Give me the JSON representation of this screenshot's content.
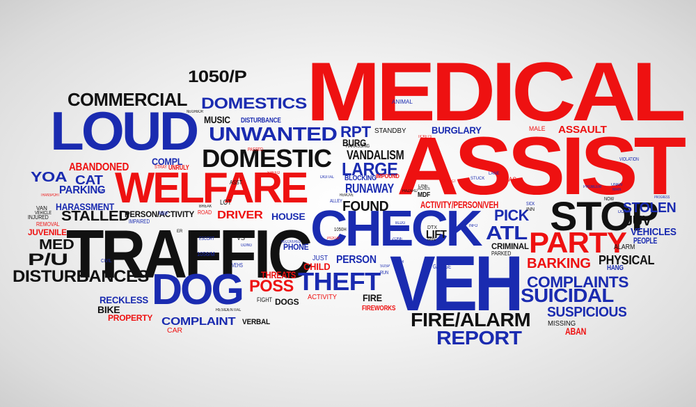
{
  "colors": {
    "red": "#ee1111",
    "blue": "#1a2bb0",
    "black": "#111111",
    "background": "#f0f0f0"
  },
  "words": [
    {
      "text": "MEDICAL",
      "color": "red"
    },
    {
      "text": "ASSIST",
      "color": "red"
    },
    {
      "text": "VEH",
      "color": "blue"
    },
    {
      "text": "TRAFFIC",
      "color": "black"
    },
    {
      "text": "CHECK",
      "color": "blue"
    },
    {
      "text": "WELFARE",
      "color": "red"
    },
    {
      "text": "LOUD",
      "color": "blue"
    },
    {
      "text": "DOG",
      "color": "blue"
    },
    {
      "text": "STOP",
      "color": "black"
    },
    {
      "text": "PARTY",
      "color": "red"
    },
    {
      "text": "DOMESTIC",
      "color": "black"
    },
    {
      "text": "UNWANTED",
      "color": "blue"
    },
    {
      "text": "COMMERCIAL",
      "color": "black"
    },
    {
      "text": "DOMESTICS",
      "color": "blue"
    },
    {
      "text": "1050/P",
      "color": "black"
    },
    {
      "text": "DISTURBANCES",
      "color": "black"
    },
    {
      "text": "FIRE/ALARM",
      "color": "black"
    },
    {
      "text": "REPORT",
      "color": "blue"
    },
    {
      "text": "THEFT",
      "color": "blue"
    },
    {
      "text": "POSS",
      "color": "red"
    },
    {
      "text": "COMPLAINTS",
      "color": "blue"
    },
    {
      "text": "SUICIDAL",
      "color": "blue"
    },
    {
      "text": "SUSPICIOUS",
      "color": "blue"
    },
    {
      "text": "BARKING",
      "color": "red"
    },
    {
      "text": "PHYSICAL",
      "color": "black"
    },
    {
      "text": "VEHICLES",
      "color": "blue"
    },
    {
      "text": "STOLEN",
      "color": "blue"
    },
    {
      "text": "JUV",
      "color": "black"
    },
    {
      "text": "ATL",
      "color": "blue"
    },
    {
      "text": "PICK",
      "color": "blue"
    },
    {
      "text": "FOUND",
      "color": "black"
    },
    {
      "text": "LARGE",
      "color": "blue"
    },
    {
      "text": "RUNAWAY",
      "color": "blue"
    },
    {
      "text": "VANDALISM",
      "color": "black"
    },
    {
      "text": "BURG",
      "color": "black"
    },
    {
      "text": "RPT",
      "color": "blue"
    },
    {
      "text": "STANDBY",
      "color": "black"
    },
    {
      "text": "BURGLARY",
      "color": "blue"
    },
    {
      "text": "ASSAULT",
      "color": "red"
    },
    {
      "text": "MALE",
      "color": "red"
    },
    {
      "text": "ANIMAL",
      "color": "blue"
    },
    {
      "text": "ACTIVITY/PERSON/VEH",
      "color": "red"
    },
    {
      "text": "LIFT",
      "color": "black"
    },
    {
      "text": "CRIMINAL",
      "color": "black"
    },
    {
      "text": "PARKED",
      "color": "black"
    },
    {
      "text": "ALARM",
      "color": "black"
    },
    {
      "text": "PEOPLE",
      "color": "blue"
    },
    {
      "text": "HANG",
      "color": "blue"
    },
    {
      "text": "MISSING",
      "color": "black"
    },
    {
      "text": "ABAN",
      "color": "red"
    },
    {
      "text": "GARAGE",
      "color": "blue"
    },
    {
      "text": "PERSON",
      "color": "blue"
    },
    {
      "text": "CHILD",
      "color": "red"
    },
    {
      "text": "JUST",
      "color": "blue"
    },
    {
      "text": "ACTIVITY",
      "color": "red"
    },
    {
      "text": "FIRE",
      "color": "black"
    },
    {
      "text": "FIREWORKS",
      "color": "red"
    },
    {
      "text": "THREATS",
      "color": "red"
    },
    {
      "text": "DOGS",
      "color": "black"
    },
    {
      "text": "FIGHT",
      "color": "black"
    },
    {
      "text": "PHONE",
      "color": "blue"
    },
    {
      "text": "HOUSE",
      "color": "blue"
    },
    {
      "text": "DRIVER",
      "color": "red"
    },
    {
      "text": "LOT",
      "color": "black"
    },
    {
      "text": "ASST",
      "color": "black"
    },
    {
      "text": "PERSON/ACTIVITY",
      "color": "black"
    },
    {
      "text": "ROAD",
      "color": "red"
    },
    {
      "text": "COMPLAINT",
      "color": "blue"
    },
    {
      "text": "VERBAL",
      "color": "black"
    },
    {
      "text": "CAR",
      "color": "red"
    },
    {
      "text": "PROPERTY",
      "color": "red"
    },
    {
      "text": "RECKLESS",
      "color": "blue"
    },
    {
      "text": "BIKE",
      "color": "black"
    },
    {
      "text": "P/U",
      "color": "black"
    },
    {
      "text": "MED",
      "color": "black"
    },
    {
      "text": "JUVENILE",
      "color": "red"
    },
    {
      "text": "STALLED",
      "color": "black"
    },
    {
      "text": "HARASSMENT",
      "color": "blue"
    },
    {
      "text": "PARKING",
      "color": "blue"
    },
    {
      "text": "CAT",
      "color": "blue"
    },
    {
      "text": "YOA",
      "color": "blue"
    },
    {
      "text": "ABANDONED",
      "color": "red"
    },
    {
      "text": "COMPL",
      "color": "blue"
    },
    {
      "text": "UNRULY",
      "color": "red"
    },
    {
      "text": "MUSIC",
      "color": "black"
    },
    {
      "text": "DISTURBANCE",
      "color": "blue"
    },
    {
      "text": "1056/M",
      "color": "blue"
    },
    {
      "text": "VEHS",
      "color": "blue"
    },
    {
      "text": "VS",
      "color": "black"
    },
    {
      "text": "BLOCKING",
      "color": "blue"
    },
    {
      "text": "IMPOUND",
      "color": "red"
    },
    {
      "text": "MDF",
      "color": "black"
    },
    {
      "text": "1050H",
      "color": "black"
    },
    {
      "text": "ESCORT",
      "color": "blue"
    },
    {
      "text": "INJURED",
      "color": "black"
    },
    {
      "text": "REMOVAL",
      "color": "red"
    },
    {
      "text": "VAN",
      "color": "black"
    },
    {
      "text": "STRAY",
      "color": "red"
    },
    {
      "text": "PASSED",
      "color": "red"
    },
    {
      "text": "HARASSING",
      "color": "black"
    },
    {
      "text": "GAS",
      "color": "red"
    },
    {
      "text": "LANE",
      "color": "blue"
    },
    {
      "text": "STUCK",
      "color": "blue"
    },
    {
      "text": "VIOLATION",
      "color": "blue"
    },
    {
      "text": "PROBLEM",
      "color": "blue"
    },
    {
      "text": "NOW",
      "color": "black"
    },
    {
      "text": "SICK",
      "color": "blue"
    },
    {
      "text": "INN",
      "color": "black"
    },
    {
      "text": "UNKN",
      "color": "blue"
    },
    {
      "text": "MAN",
      "color": "blue"
    },
    {
      "text": "DTX",
      "color": "black"
    },
    {
      "text": "MIN",
      "color": "black"
    },
    {
      "text": "ZONE",
      "color": "blue"
    },
    {
      "text": "ACRES",
      "color": "black"
    },
    {
      "text": "SUBJECT",
      "color": "red"
    },
    {
      "text": "REF",
      "color": "blue"
    },
    {
      "text": "SU",
      "color": "blue"
    },
    {
      "text": "IMPAIRED",
      "color": "blue"
    },
    {
      "text": "CIVIL",
      "color": "blue"
    },
    {
      "text": "RESIDENTIAL",
      "color": "black"
    },
    {
      "text": "TRANSPORT",
      "color": "red"
    },
    {
      "text": "VEHICLE",
      "color": "black"
    },
    {
      "text": "ALLEY",
      "color": "blue"
    },
    {
      "text": "REMOVE",
      "color": "black"
    },
    {
      "text": "RUN",
      "color": "blue"
    },
    {
      "text": "PICKUP",
      "color": "red"
    },
    {
      "text": "RECOVERED",
      "color": "blue"
    },
    {
      "text": "NEIGHBOR",
      "color": "black"
    },
    {
      "text": "TH",
      "color": "blue"
    },
    {
      "text": "SPEED",
      "color": "red"
    },
    {
      "text": "BLDG",
      "color": "blue"
    },
    {
      "text": "DIGITAL",
      "color": "blue"
    },
    {
      "text": "BREAK",
      "color": "black"
    },
    {
      "text": "LINE",
      "color": "black"
    },
    {
      "text": "TICKETS",
      "color": "red"
    },
    {
      "text": "DOWN",
      "color": "blue"
    },
    {
      "text": "SPILL",
      "color": "blue"
    },
    {
      "text": "INFO",
      "color": "blue"
    },
    {
      "text": "GOING",
      "color": "blue"
    },
    {
      "text": "ER",
      "color": "black"
    },
    {
      "text": "DIE",
      "color": "red"
    },
    {
      "text": "SUSP",
      "color": "blue"
    },
    {
      "text": "PROGRESS",
      "color": "blue"
    },
    {
      "text": "HAZARD",
      "color": "black"
    }
  ]
}
